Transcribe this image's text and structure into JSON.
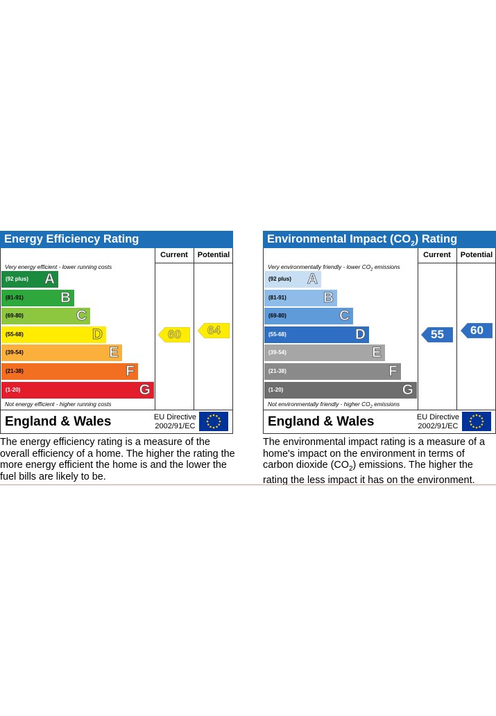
{
  "colors": {
    "header_blue": "#1d6fb8",
    "energy_bands": [
      "#1a8a3e",
      "#2ea83c",
      "#8dc63f",
      "#ffec00",
      "#fbb03b",
      "#f26f22",
      "#e31d2c"
    ],
    "environment_bands": [
      "#c7def3",
      "#8fbbe8",
      "#5f9ad9",
      "#2f6fc3",
      "#a6a6a6",
      "#8a8a8a",
      "#6e6e6e"
    ],
    "energy_marker": "#ffec00",
    "environment_marker": "#2f6fc3"
  },
  "energy": {
    "title": "Energy Efficiency Rating",
    "col_current": "Current",
    "col_potential": "Potential",
    "top_note": "Very energy efficient - lower running costs",
    "bottom_note": "Not energy efficient - higher running costs",
    "footer_title": "England & Wales",
    "directive_line1": "EU Directive",
    "directive_line2": "2002/91/EC",
    "bands": [
      {
        "range": "(92 plus)",
        "letter": "A"
      },
      {
        "range": "(81-91)",
        "letter": "B"
      },
      {
        "range": "(69-80)",
        "letter": "C"
      },
      {
        "range": "(55-68)",
        "letter": "D"
      },
      {
        "range": "(39-54)",
        "letter": "E"
      },
      {
        "range": "(21-38)",
        "letter": "F"
      },
      {
        "range": "(1-20)",
        "letter": "G"
      }
    ],
    "current_value": "60",
    "potential_value": "64",
    "description": "The energy efficiency rating is a measure of the overall efficiency of a home. The higher the rating the more energy efficient the home is and the lower the fuel bills are likely to be."
  },
  "environment": {
    "title_pre": "Environmental Impact (CO",
    "title_sub": "2",
    "title_post": ") Rating",
    "col_current": "Current",
    "col_potential": "Potential",
    "top_note_pre": "Very environmentally friendly - lower CO",
    "top_note_sub": "2",
    "top_note_post": " emissions",
    "bottom_note_pre": "Not environmentally friendly - higher CO",
    "bottom_note_sub": "2",
    "bottom_note_post": " emissions",
    "footer_title": "England & Wales",
    "directive_line1": "EU Directive",
    "directive_line2": "2002/91/EC",
    "bands": [
      {
        "range": "(92 plus)",
        "letter": "A"
      },
      {
        "range": "(81-91)",
        "letter": "B"
      },
      {
        "range": "(69-80)",
        "letter": "C"
      },
      {
        "range": "(55-68)",
        "letter": "D"
      },
      {
        "range": "(39-54)",
        "letter": "E"
      },
      {
        "range": "(21-38)",
        "letter": "F"
      },
      {
        "range": "(1-20)",
        "letter": "G"
      }
    ],
    "current_value": "55",
    "potential_value": "60",
    "description_pre": "The environmental impact rating is a measure of a home's impact on the environment in terms of carbon dioxide (CO",
    "description_sub": "2",
    "description_post": ") emissions. The higher the rating the less impact it has on the environment."
  },
  "chart_data": [
    {
      "type": "bar",
      "title": "Energy Efficiency Rating",
      "categories": [
        "A",
        "B",
        "C",
        "D",
        "E",
        "F",
        "G"
      ],
      "ranges": [
        "92 plus",
        "81-91",
        "69-80",
        "55-68",
        "39-54",
        "21-38",
        "1-20"
      ],
      "current": 60,
      "potential": 64
    },
    {
      "type": "bar",
      "title": "Environmental Impact (CO2) Rating",
      "categories": [
        "A",
        "B",
        "C",
        "D",
        "E",
        "F",
        "G"
      ],
      "ranges": [
        "92 plus",
        "81-91",
        "69-80",
        "55-68",
        "39-54",
        "21-38",
        "1-20"
      ],
      "current": 55,
      "potential": 60
    }
  ]
}
